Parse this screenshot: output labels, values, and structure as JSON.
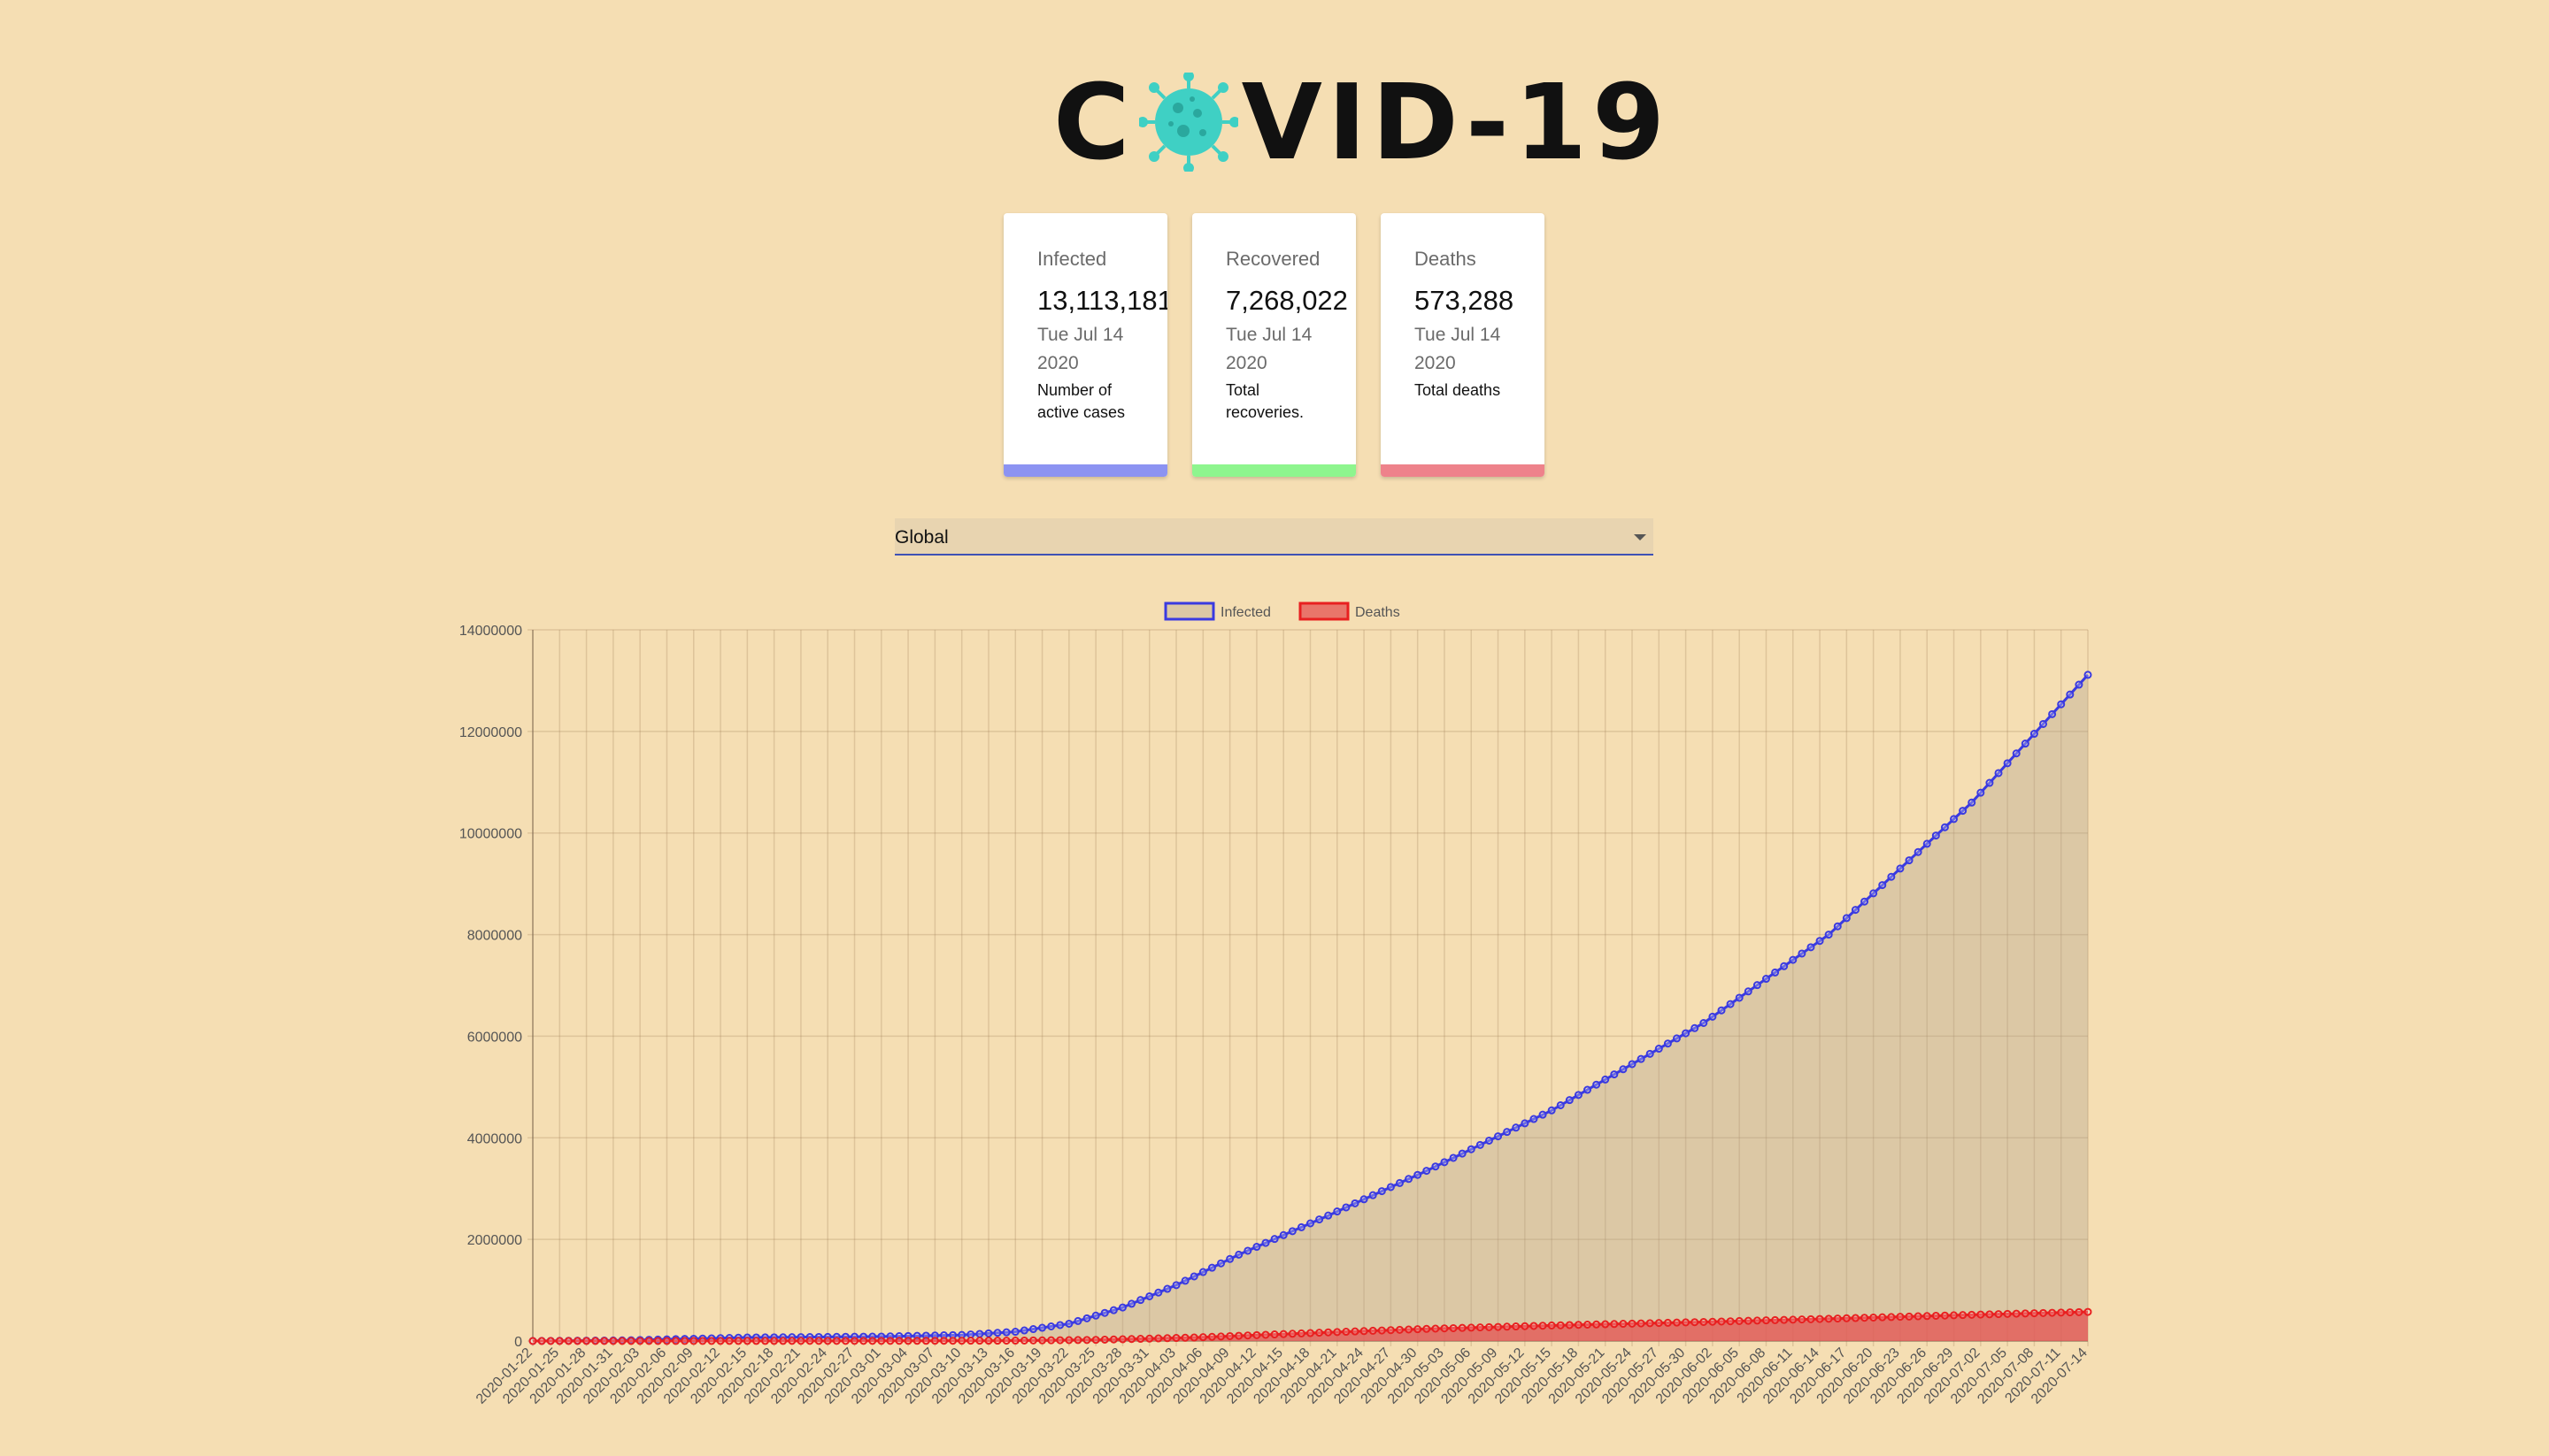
{
  "logo": {
    "text_before": "C",
    "text_after": "VID-19"
  },
  "cards": [
    {
      "label": "Infected",
      "value": "13,113,181",
      "date": "Tue Jul 14 2020",
      "description": "Number of active cases",
      "color": "#8c93f2"
    },
    {
      "label": "Recovered",
      "value": "7,268,022",
      "date": "Tue Jul 14 2020",
      "description": "Total recoveries.",
      "color": "#8ef58e"
    },
    {
      "label": "Deaths",
      "value": "573,288",
      "date": "Tue Jul 14 2020",
      "description": "Total deaths",
      "color": "#ee828b"
    }
  ],
  "country_select": {
    "value": "Global"
  },
  "chart_data": {
    "type": "line",
    "legend_position": "top",
    "grid": true,
    "ylim": [
      0,
      14000000
    ],
    "yticks": [
      "0",
      "2000000",
      "4000000",
      "6000000",
      "8000000",
      "10000000",
      "12000000",
      "14000000"
    ],
    "start_date": "2020-01-22",
    "end_date": "2020-07-14",
    "num_points": 175,
    "series": [
      {
        "name": "Infected",
        "color": "#3a3ae0",
        "fill": "rgba(175,160,140,0.35)",
        "anchors": [
          [
            "2020-01-22",
            555
          ],
          [
            "2020-02-01",
            12000
          ],
          [
            "2020-02-15",
            69000
          ],
          [
            "2020-03-01",
            88000
          ],
          [
            "2020-03-10",
            119000
          ],
          [
            "2020-03-16",
            182000
          ],
          [
            "2020-03-22",
            340000
          ],
          [
            "2020-03-28",
            660000
          ],
          [
            "2020-04-03",
            1100000
          ],
          [
            "2020-04-10",
            1700000
          ],
          [
            "2020-04-20",
            2470000
          ],
          [
            "2020-05-01",
            3350000
          ],
          [
            "2020-05-15",
            4540000
          ],
          [
            "2020-06-01",
            6260000
          ],
          [
            "2020-06-15",
            8000000
          ],
          [
            "2020-07-01",
            10600000
          ],
          [
            "2020-07-14",
            13113181
          ]
        ]
      },
      {
        "name": "Deaths",
        "color": "#e82020",
        "fill": "rgba(228,82,82,0.75)",
        "anchors": [
          [
            "2020-01-22",
            17
          ],
          [
            "2020-02-15",
            1660
          ],
          [
            "2020-03-01",
            3000
          ],
          [
            "2020-03-15",
            6500
          ],
          [
            "2020-03-25",
            22000
          ],
          [
            "2020-04-05",
            69000
          ],
          [
            "2020-04-20",
            170000
          ],
          [
            "2020-05-01",
            239000
          ],
          [
            "2020-05-15",
            306000
          ],
          [
            "2020-06-01",
            375000
          ],
          [
            "2020-06-15",
            438000
          ],
          [
            "2020-07-01",
            516000
          ],
          [
            "2020-07-14",
            573288
          ]
        ]
      }
    ]
  }
}
